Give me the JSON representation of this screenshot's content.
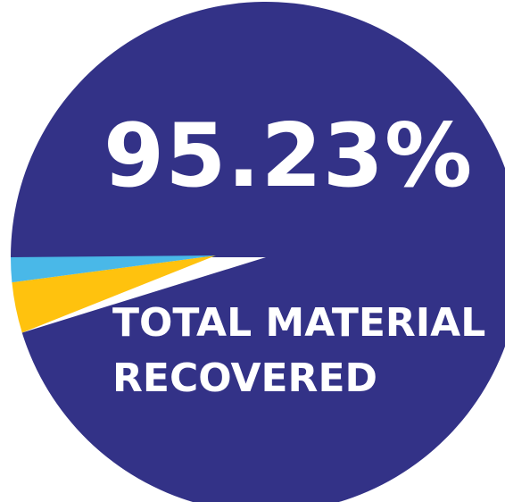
{
  "chart_data": {
    "type": "pie",
    "slices": [
      {
        "label": "",
        "value": 95.23,
        "color": "#333287"
      },
      {
        "label": "",
        "value": 3.2,
        "color": "#FFC20E"
      },
      {
        "label": "",
        "value": 1.57,
        "color": "#49B8E8"
      }
    ],
    "headline": "95.23%",
    "label_lines": [
      "TOTAL MATERIAL",
      "RECOVERED"
    ]
  }
}
